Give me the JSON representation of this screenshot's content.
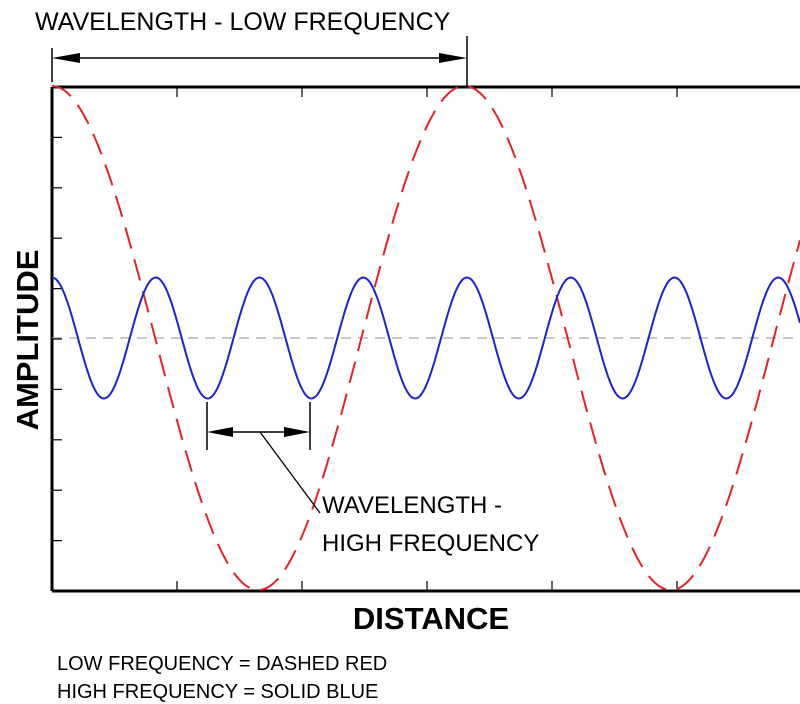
{
  "diagram": {
    "top_label": "WAVELENGTH - LOW FREQUENCY",
    "inner_label_line1": "WAVELENGTH -",
    "inner_label_line2": "HIGH FREQUENCY",
    "y_axis_label": "AMPLITUDE",
    "x_axis_label": "DISTANCE",
    "legend_line1": "LOW FREQUENCY = DASHED RED",
    "legend_line2": "HIGH FREQUENCY = SOLID BLUE"
  },
  "series": [
    {
      "key": "low_frequency",
      "style": "dashed",
      "color": "#e8202a",
      "wavelength_in_grid_units": 3.3,
      "peak_amplitude": 5
    },
    {
      "key": "high_frequency",
      "style": "solid",
      "color": "#1c22d6",
      "wavelength_in_grid_units": 0.83,
      "peak_amplitude": 1.2
    }
  ],
  "colors": {
    "frame": "#000000",
    "grid_center": "#a8a8a8",
    "low_wave": "#e8202a",
    "high_wave": "#1c22d6"
  }
}
